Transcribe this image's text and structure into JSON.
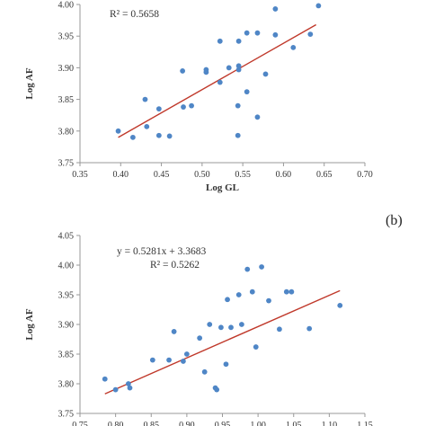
{
  "chart_data": [
    {
      "type": "scatter",
      "title": "",
      "xlabel": "Log GL",
      "ylabel": "Log AF",
      "xlim": [
        0.35,
        0.7
      ],
      "ylim": [
        3.75,
        4.0
      ],
      "xticks": [
        "0.35",
        "0.40",
        "0.45",
        "0.50",
        "0.55",
        "0.60",
        "0.65",
        "0.70"
      ],
      "yticks": [
        "3.75",
        "3.80",
        "3.85",
        "3.90",
        "3.95",
        "4.00"
      ],
      "equation": "",
      "r2": "R² = 0.5658",
      "trendline": {
        "x1": 0.397,
        "y1": 3.79,
        "x2": 0.64,
        "y2": 3.968
      },
      "points": [
        {
          "x": 0.397,
          "y": 3.8
        },
        {
          "x": 0.415,
          "y": 3.79
        },
        {
          "x": 0.43,
          "y": 3.85
        },
        {
          "x": 0.432,
          "y": 3.807
        },
        {
          "x": 0.447,
          "y": 3.835
        },
        {
          "x": 0.447,
          "y": 3.793
        },
        {
          "x": 0.46,
          "y": 3.792
        },
        {
          "x": 0.476,
          "y": 3.895
        },
        {
          "x": 0.477,
          "y": 3.838
        },
        {
          "x": 0.487,
          "y": 3.84
        },
        {
          "x": 0.505,
          "y": 3.897
        },
        {
          "x": 0.505,
          "y": 3.893
        },
        {
          "x": 0.522,
          "y": 3.942
        },
        {
          "x": 0.522,
          "y": 3.877
        },
        {
          "x": 0.533,
          "y": 3.9
        },
        {
          "x": 0.545,
          "y": 3.942
        },
        {
          "x": 0.545,
          "y": 3.903
        },
        {
          "x": 0.545,
          "y": 3.897
        },
        {
          "x": 0.544,
          "y": 3.84
        },
        {
          "x": 0.544,
          "y": 3.793
        },
        {
          "x": 0.555,
          "y": 3.955
        },
        {
          "x": 0.555,
          "y": 3.862
        },
        {
          "x": 0.568,
          "y": 3.955
        },
        {
          "x": 0.568,
          "y": 3.822
        },
        {
          "x": 0.578,
          "y": 3.89
        },
        {
          "x": 0.59,
          "y": 3.993
        },
        {
          "x": 0.59,
          "y": 3.952
        },
        {
          "x": 0.612,
          "y": 3.932
        },
        {
          "x": 0.633,
          "y": 3.953
        },
        {
          "x": 0.643,
          "y": 3.998
        }
      ]
    },
    {
      "type": "scatter",
      "title": "",
      "xlabel": "",
      "ylabel": "Log AF",
      "xlim": [
        0.75,
        1.15
      ],
      "ylim": [
        3.75,
        4.05
      ],
      "xticks": [
        "0.75",
        "0.80",
        "0.85",
        "0.90",
        "0.95",
        "1.00",
        "1.05",
        "1.10",
        "1.15"
      ],
      "yticks": [
        "3.75",
        "3.80",
        "3.85",
        "3.90",
        "3.95",
        "4.00",
        "4.05"
      ],
      "equation": "y = 0.5281x + 3.3683",
      "r2": "R² = 0.5262",
      "trendline": {
        "x1": 0.785,
        "y1": 3.783,
        "x2": 1.115,
        "y2": 3.957
      },
      "points": [
        {
          "x": 0.785,
          "y": 3.808
        },
        {
          "x": 0.8,
          "y": 3.79
        },
        {
          "x": 0.818,
          "y": 3.8
        },
        {
          "x": 0.82,
          "y": 3.793
        },
        {
          "x": 0.852,
          "y": 3.84
        },
        {
          "x": 0.875,
          "y": 3.84
        },
        {
          "x": 0.882,
          "y": 3.888
        },
        {
          "x": 0.895,
          "y": 3.838
        },
        {
          "x": 0.9,
          "y": 3.85
        },
        {
          "x": 0.918,
          "y": 3.877
        },
        {
          "x": 0.925,
          "y": 3.82
        },
        {
          "x": 0.932,
          "y": 3.9
        },
        {
          "x": 0.94,
          "y": 3.793
        },
        {
          "x": 0.942,
          "y": 3.79
        },
        {
          "x": 0.948,
          "y": 3.895
        },
        {
          "x": 0.955,
          "y": 3.833
        },
        {
          "x": 0.957,
          "y": 3.942
        },
        {
          "x": 0.962,
          "y": 3.895
        },
        {
          "x": 0.973,
          "y": 3.95
        },
        {
          "x": 0.977,
          "y": 3.9
        },
        {
          "x": 0.985,
          "y": 3.993
        },
        {
          "x": 0.992,
          "y": 3.955
        },
        {
          "x": 0.997,
          "y": 3.862
        },
        {
          "x": 1.005,
          "y": 3.997
        },
        {
          "x": 1.015,
          "y": 3.94
        },
        {
          "x": 1.03,
          "y": 3.892
        },
        {
          "x": 1.04,
          "y": 3.955
        },
        {
          "x": 1.047,
          "y": 3.955
        },
        {
          "x": 1.072,
          "y": 3.893
        },
        {
          "x": 1.115,
          "y": 3.932
        }
      ]
    }
  ],
  "panel_label": "(b)"
}
